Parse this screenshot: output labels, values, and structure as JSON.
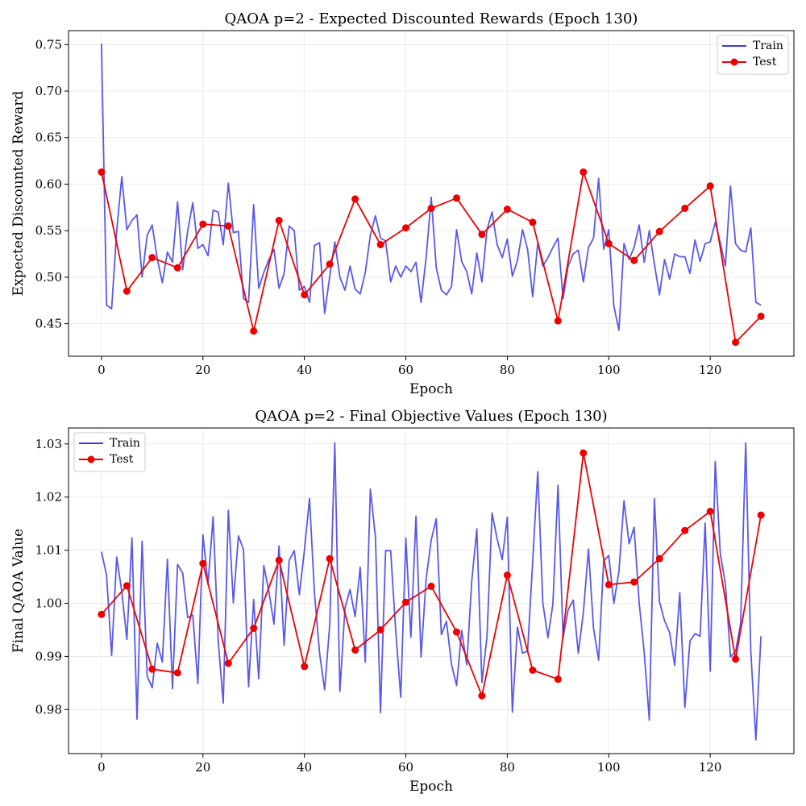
{
  "chart_data": [
    {
      "type": "line",
      "title": "QAOA p=2 - Expected Discounted Rewards (Epoch 130)",
      "xlabel": "Epoch",
      "ylabel": "Expected Discounted Reward",
      "xlim": [
        -6.5,
        136.5
      ],
      "ylim": [
        0.415,
        0.765
      ],
      "xticks": [
        0,
        20,
        40,
        60,
        80,
        100,
        120
      ],
      "yticks": [
        0.45,
        0.5,
        0.55,
        0.6,
        0.65,
        0.7,
        0.75
      ],
      "ytick_labels": [
        "0.45",
        "0.50",
        "0.55",
        "0.60",
        "0.65",
        "0.70",
        "0.75"
      ],
      "grid": true,
      "legend_position": "upper-right",
      "series": [
        {
          "name": "Train",
          "color": "#3b3bea",
          "marker": "none",
          "x": [
            0,
            1,
            2,
            3,
            4,
            5,
            6,
            7,
            8,
            9,
            10,
            11,
            12,
            13,
            14,
            15,
            16,
            17,
            18,
            19,
            20,
            21,
            22,
            23,
            24,
            25,
            26,
            27,
            28,
            29,
            30,
            31,
            32,
            33,
            34,
            35,
            36,
            37,
            38,
            39,
            40,
            41,
            42,
            43,
            44,
            45,
            46,
            47,
            48,
            49,
            50,
            51,
            52,
            53,
            54,
            55,
            56,
            57,
            58,
            59,
            60,
            61,
            62,
            63,
            64,
            65,
            66,
            67,
            68,
            69,
            70,
            71,
            72,
            73,
            74,
            75,
            76,
            77,
            78,
            79,
            80,
            81,
            82,
            83,
            84,
            85,
            86,
            87,
            88,
            89,
            90,
            91,
            92,
            93,
            94,
            95,
            96,
            97,
            98,
            99,
            100,
            101,
            102,
            103,
            104,
            105,
            106,
            107,
            108,
            109,
            110,
            111,
            112,
            113,
            114,
            115,
            116,
            117,
            118,
            119,
            120,
            121,
            122,
            123,
            124,
            125,
            126,
            127,
            128,
            129,
            130
          ],
          "values": [
            0.751,
            0.47,
            0.466,
            0.55,
            0.608,
            0.551,
            0.561,
            0.567,
            0.5,
            0.545,
            0.556,
            0.52,
            0.494,
            0.527,
            0.516,
            0.581,
            0.508,
            0.55,
            0.58,
            0.531,
            0.535,
            0.523,
            0.572,
            0.57,
            0.535,
            0.601,
            0.548,
            0.549,
            0.477,
            0.473,
            0.578,
            0.488,
            0.505,
            0.519,
            0.53,
            0.488,
            0.504,
            0.555,
            0.55,
            0.486,
            0.49,
            0.473,
            0.534,
            0.537,
            0.461,
            0.501,
            0.538,
            0.5,
            0.486,
            0.512,
            0.487,
            0.482,
            0.505,
            0.545,
            0.566,
            0.542,
            0.539,
            0.495,
            0.512,
            0.5,
            0.512,
            0.506,
            0.516,
            0.473,
            0.521,
            0.586,
            0.51,
            0.486,
            0.481,
            0.49,
            0.551,
            0.517,
            0.506,
            0.482,
            0.526,
            0.495,
            0.551,
            0.57,
            0.535,
            0.521,
            0.541,
            0.501,
            0.518,
            0.551,
            0.53,
            0.479,
            0.537,
            0.512,
            0.521,
            0.532,
            0.542,
            0.477,
            0.512,
            0.525,
            0.529,
            0.495,
            0.532,
            0.542,
            0.606,
            0.53,
            0.551,
            0.469,
            0.443,
            0.536,
            0.519,
            0.532,
            0.556,
            0.516,
            0.55,
            0.514,
            0.481,
            0.519,
            0.498,
            0.525,
            0.522,
            0.522,
            0.504,
            0.54,
            0.517,
            0.536,
            0.538,
            0.559,
            0.537,
            0.512,
            0.598,
            0.536,
            0.529,
            0.527,
            0.553,
            0.473,
            0.47
          ]
        },
        {
          "name": "Test",
          "color": "#ee0000",
          "marker": "circle",
          "x": [
            0,
            5,
            10,
            15,
            20,
            25,
            30,
            35,
            40,
            45,
            50,
            55,
            60,
            65,
            70,
            75,
            80,
            85,
            90,
            95,
            100,
            105,
            110,
            115,
            120,
            125,
            130
          ],
          "values": [
            0.613,
            0.485,
            0.521,
            0.51,
            0.557,
            0.555,
            0.442,
            0.561,
            0.481,
            0.514,
            0.584,
            0.535,
            0.553,
            0.574,
            0.585,
            0.546,
            0.573,
            0.559,
            0.453,
            0.613,
            0.536,
            0.518,
            0.549,
            0.574,
            0.598,
            0.43,
            0.458
          ]
        }
      ]
    },
    {
      "type": "line",
      "title": "QAOA p=2 - Final Objective Values (Epoch 130)",
      "xlabel": "Epoch",
      "ylabel": "Final QAOA Value",
      "xlim": [
        -6.5,
        136.5
      ],
      "ylim": [
        0.9717,
        1.033
      ],
      "xticks": [
        0,
        20,
        40,
        60,
        80,
        100,
        120
      ],
      "yticks": [
        0.98,
        0.99,
        1.0,
        1.01,
        1.02,
        1.03
      ],
      "ytick_labels": [
        "0.98",
        "0.99",
        "1.00",
        "1.01",
        "1.02",
        "1.03"
      ],
      "grid": true,
      "legend_position": "upper-left",
      "series": [
        {
          "name": "Train",
          "color": "#3b3bea",
          "marker": "none",
          "x": [
            0,
            1,
            2,
            3,
            4,
            5,
            6,
            7,
            8,
            9,
            10,
            11,
            12,
            13,
            14,
            15,
            16,
            17,
            18,
            19,
            20,
            21,
            22,
            23,
            24,
            25,
            26,
            27,
            28,
            29,
            30,
            31,
            32,
            33,
            34,
            35,
            36,
            37,
            38,
            39,
            40,
            41,
            42,
            43,
            44,
            45,
            46,
            47,
            48,
            49,
            50,
            51,
            52,
            53,
            54,
            55,
            56,
            57,
            58,
            59,
            60,
            61,
            62,
            63,
            64,
            65,
            66,
            67,
            68,
            69,
            70,
            71,
            72,
            73,
            74,
            75,
            76,
            77,
            78,
            79,
            80,
            81,
            82,
            83,
            84,
            85,
            86,
            87,
            88,
            89,
            90,
            91,
            92,
            93,
            94,
            95,
            96,
            97,
            98,
            99,
            100,
            101,
            102,
            103,
            104,
            105,
            106,
            107,
            108,
            109,
            110,
            111,
            112,
            113,
            114,
            115,
            116,
            117,
            118,
            119,
            120,
            121,
            122,
            123,
            124,
            125,
            126,
            127,
            128,
            129,
            130
          ],
          "values": [
            1.0097,
            1.0053,
            0.9902,
            1.0087,
            1.0022,
            0.9932,
            1.0123,
            0.9782,
            1.0117,
            0.9863,
            0.9841,
            0.9925,
            0.9889,
            1.0083,
            0.9839,
            1.0073,
            1.0057,
            0.9973,
            0.9978,
            0.9849,
            1.0129,
            1.0035,
            1.0163,
            0.993,
            0.9812,
            1.0175,
            1.0001,
            1.0127,
            1.0101,
            0.9843,
            1.0007,
            0.9858,
            1.0071,
            1.0022,
            0.9961,
            1.0108,
            0.9921,
            1.0081,
            1.0099,
            1.0016,
            1.01,
            1.0197,
            1.0018,
            0.9906,
            0.9837,
            0.996,
            1.0302,
            0.9834,
            0.9991,
            1.0026,
            0.9975,
            1.0068,
            0.9889,
            1.0215,
            1.0125,
            0.9794,
            1.0099,
            1.0099,
            0.995,
            0.9823,
            1.0123,
            0.9936,
            1.0164,
            0.9899,
            1.0046,
            1.0119,
            1.0159,
            0.9941,
            0.9966,
            0.9885,
            0.9845,
            0.9949,
            0.9884,
            1.0042,
            1.014,
            0.9851,
            0.9937,
            1.017,
            1.0121,
            1.0082,
            1.0162,
            0.9795,
            0.9955,
            0.9906,
            0.991,
            1.0079,
            1.0248,
            1.0001,
            0.9935,
            0.9999,
            1.0222,
            0.9935,
            0.9988,
            1.0006,
            0.9906,
            0.9983,
            1.0102,
            0.9953,
            0.9893,
            1.008,
            1.009,
            1.0,
            1.006,
            1.0193,
            1.0112,
            1.0143,
            1.0001,
            0.9907,
            0.978,
            1.0197,
            1.0003,
            0.9967,
            0.9945,
            0.9883,
            1.002,
            0.9804,
            0.9929,
            0.9943,
            0.9938,
            1.0151,
            0.9872,
            1.0267,
            1.0093,
            1.0037,
            0.9899,
            0.9909,
            0.9962,
            1.0302,
            0.991,
            0.9743,
            0.9938
          ]
        },
        {
          "name": "Test",
          "color": "#ee0000",
          "marker": "circle",
          "x": [
            0,
            5,
            10,
            15,
            20,
            25,
            30,
            35,
            40,
            45,
            50,
            55,
            60,
            65,
            70,
            75,
            80,
            85,
            90,
            95,
            100,
            105,
            110,
            115,
            120,
            125,
            130
          ],
          "values": [
            0.9979,
            1.0033,
            0.9876,
            0.9869,
            1.0075,
            0.9887,
            0.9953,
            1.0081,
            0.9881,
            1.0084,
            0.9912,
            0.995,
            1.0002,
            1.0032,
            0.9946,
            0.9826,
            1.0053,
            0.9874,
            0.9857,
            1.0283,
            1.0035,
            1.004,
            1.0084,
            1.0137,
            1.0173,
            0.9895,
            1.0166
          ]
        }
      ]
    }
  ]
}
